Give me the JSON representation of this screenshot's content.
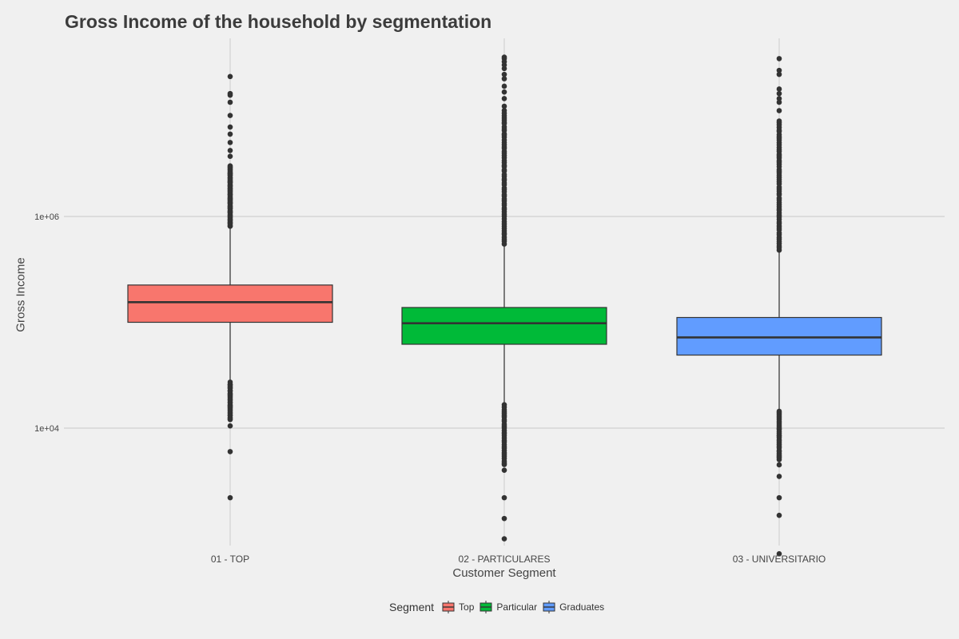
{
  "chart_data": {
    "type": "boxplot",
    "title": "Gross Income of the household by segmentation",
    "xlabel": "Customer Segment",
    "ylabel": "Gross Income",
    "y_scale": "log10",
    "ylim": [
      1000,
      35000000
    ],
    "y_ticks": [
      {
        "value": 10000,
        "label": "1e+04"
      },
      {
        "value": 1000000,
        "label": "1e+06"
      }
    ],
    "grid": true,
    "legend_position": "bottom",
    "legend_title": "Segment",
    "categories": [
      "01 - TOP",
      "02 - PARTICULARES",
      "03 - UNIVERSITARIO"
    ],
    "series": [
      {
        "name": "Top",
        "color": "#f8766d",
        "q1": 100000,
        "median": 155000,
        "q3": 225000,
        "whisker_low": 27000,
        "whisker_high": 800000,
        "outliers_high_range": [
          800000,
          3000000
        ],
        "outliers_high_extra": [
          3700000,
          4200000,
          5000000,
          6000000,
          7000000,
          9000000,
          12000000,
          14000000,
          14500000,
          21000000
        ],
        "outliers_low_range": [
          12000,
          27000
        ],
        "outliers_low_extra": [
          10500,
          6000,
          2200
        ]
      },
      {
        "name": "Particular",
        "color": "#00ba38",
        "q1": 62000,
        "median": 98000,
        "q3": 138000,
        "whisker_low": 16500,
        "whisker_high": 550000,
        "outliers_high_range": [
          550000,
          10000000
        ],
        "outliers_high_extra": [
          11000000,
          13000000,
          15000000,
          17000000,
          20000000,
          22000000,
          25000000,
          27000000,
          29000000,
          31000000,
          32000000
        ],
        "outliers_low_range": [
          4500,
          16500
        ],
        "outliers_low_extra": [
          4000,
          2200,
          1400,
          900
        ]
      },
      {
        "name": "Graduates",
        "color": "#619cff",
        "q1": 49000,
        "median": 72000,
        "q3": 111000,
        "whisker_low": 14500,
        "whisker_high": 480000,
        "outliers_high_range": [
          480000,
          8000000
        ],
        "outliers_high_extra": [
          10000000,
          12000000,
          13000000,
          14500000,
          16000000,
          22000000,
          24000000,
          31000000
        ],
        "outliers_low_range": [
          5000,
          14500
        ],
        "outliers_low_extra": [
          4500,
          3500,
          2200,
          1500,
          650
        ]
      }
    ]
  }
}
